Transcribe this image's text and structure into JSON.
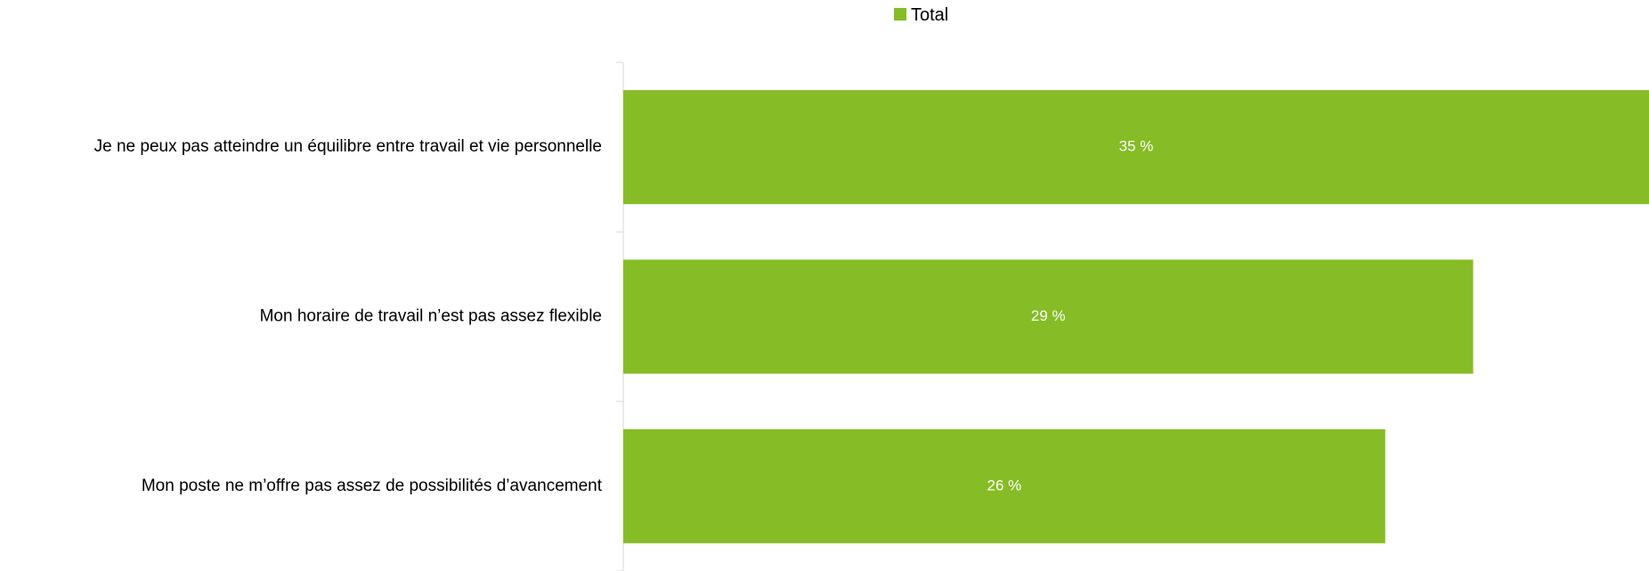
{
  "chart_data": {
    "type": "bar",
    "orientation": "horizontal",
    "categories": [
      "Je ne peux pas atteindre un équilibre entre travail et vie personnelle",
      "Mon horaire de travail n’est pas assez flexible",
      "Mon poste ne m’offre pas assez de possibilités d’avancement"
    ],
    "series": [
      {
        "name": "Total",
        "values": [
          35,
          29,
          26
        ],
        "value_labels": [
          "35 %",
          "29 %",
          "26 %"
        ],
        "color": "#86bc25"
      }
    ],
    "xlim": [
      0,
      35
    ],
    "grid": false,
    "legend": "top-center"
  }
}
